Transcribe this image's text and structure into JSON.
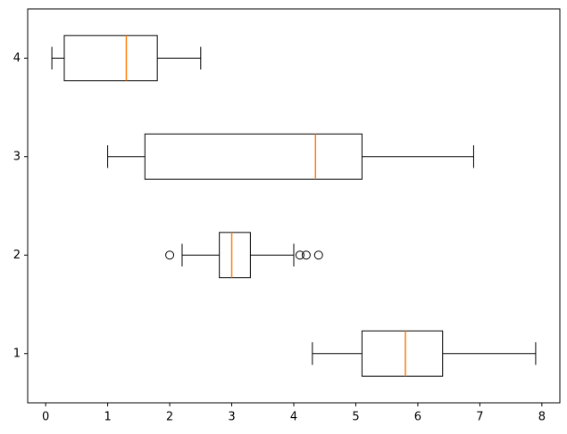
{
  "chart_data": {
    "type": "boxplot",
    "orientation": "horizontal",
    "categories": [
      "1",
      "2",
      "3",
      "4"
    ],
    "boxes": [
      {
        "whislo": 4.3,
        "q1": 5.1,
        "med": 5.8,
        "q3": 6.4,
        "whishi": 7.9,
        "fliers": []
      },
      {
        "whislo": 2.2,
        "q1": 2.8,
        "med": 3.0,
        "q3": 3.3,
        "whishi": 4.0,
        "fliers": [
          2.0,
          4.1,
          4.2,
          4.4
        ]
      },
      {
        "whislo": 1.0,
        "q1": 1.6,
        "med": 4.35,
        "q3": 5.1,
        "whishi": 6.9,
        "fliers": []
      },
      {
        "whislo": 0.1,
        "q1": 0.3,
        "med": 1.3,
        "q3": 1.8,
        "whishi": 2.5,
        "fliers": []
      }
    ],
    "box_color": "#000000",
    "median_color": "#ff7f0e",
    "xlim": [
      -0.29,
      8.29
    ],
    "xticks": [
      0,
      1,
      2,
      3,
      4,
      5,
      6,
      7,
      8
    ]
  }
}
